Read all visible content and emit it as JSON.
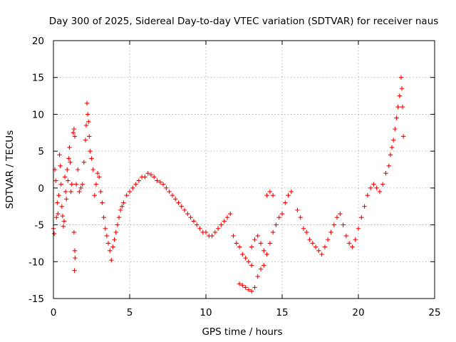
{
  "chart_data": {
    "type": "scatter",
    "title": "Day 300 of 2025, Sidereal Day-to-day VTEC variation (SDTVAR) for receiver naus",
    "xlabel": "GPS time / hours",
    "ylabel": "SDTVAR / TECUs",
    "xlim": [
      0,
      25
    ],
    "ylim": [
      -15,
      20
    ],
    "xticks": [
      0,
      5,
      10,
      15,
      20,
      25
    ],
    "yticks": [
      -15,
      -10,
      -5,
      0,
      5,
      10,
      15,
      20
    ],
    "grid": true,
    "marker": "+",
    "color": "#ff0000",
    "series": [
      {
        "name": "SDTVAR",
        "points": [
          [
            0.0,
            -5.5
          ],
          [
            0.05,
            -6.2
          ],
          [
            0.1,
            2.5
          ],
          [
            0.15,
            1.0
          ],
          [
            0.2,
            -4.0
          ],
          [
            0.25,
            -2.0
          ],
          [
            0.3,
            -3.5
          ],
          [
            0.35,
            -1.0
          ],
          [
            0.4,
            4.5
          ],
          [
            0.45,
            3.0
          ],
          [
            0.5,
            0.5
          ],
          [
            0.55,
            -2.5
          ],
          [
            0.6,
            -3.8
          ],
          [
            0.65,
            -5.2
          ],
          [
            0.7,
            -4.5
          ],
          [
            0.75,
            1.5
          ],
          [
            0.8,
            -0.5
          ],
          [
            0.85,
            -1.5
          ],
          [
            0.9,
            2.5
          ],
          [
            0.95,
            1.0
          ],
          [
            1.0,
            4.0
          ],
          [
            1.05,
            5.5
          ],
          [
            1.1,
            3.5
          ],
          [
            1.15,
            -0.5
          ],
          [
            1.2,
            0.5
          ],
          [
            1.3,
            7.5
          ],
          [
            1.35,
            8.0
          ],
          [
            1.4,
            7.0
          ],
          [
            1.35,
            -6.0
          ],
          [
            1.4,
            -8.5
          ],
          [
            1.38,
            -11.2
          ],
          [
            1.42,
            -9.5
          ],
          [
            1.5,
            0.5
          ],
          [
            1.6,
            2.5
          ],
          [
            1.7,
            -0.5
          ],
          [
            1.8,
            0.0
          ],
          [
            1.9,
            0.5
          ],
          [
            2.0,
            3.5
          ],
          [
            2.1,
            6.5
          ],
          [
            2.15,
            8.5
          ],
          [
            2.2,
            11.5
          ],
          [
            2.25,
            10.0
          ],
          [
            2.3,
            9.0
          ],
          [
            2.35,
            7.0
          ],
          [
            2.4,
            5.0
          ],
          [
            2.5,
            4.0
          ],
          [
            2.6,
            2.5
          ],
          [
            2.7,
            -1.0
          ],
          [
            2.8,
            0.5
          ],
          [
            2.9,
            2.0
          ],
          [
            3.0,
            1.5
          ],
          [
            3.1,
            -0.5
          ],
          [
            3.2,
            -2.0
          ],
          [
            3.3,
            -4.0
          ],
          [
            3.4,
            -5.5
          ],
          [
            3.5,
            -6.5
          ],
          [
            3.6,
            -7.5
          ],
          [
            3.7,
            -8.5
          ],
          [
            3.8,
            -9.8
          ],
          [
            3.9,
            -8.0
          ],
          [
            4.0,
            -7.0
          ],
          [
            4.1,
            -6.0
          ],
          [
            4.2,
            -5.0
          ],
          [
            4.3,
            -4.0
          ],
          [
            4.4,
            -3.0
          ],
          [
            4.5,
            -2.5
          ],
          [
            4.6,
            -2.0
          ],
          [
            4.8,
            -1.0
          ],
          [
            5.0,
            -0.5
          ],
          [
            5.2,
            0.0
          ],
          [
            5.4,
            0.5
          ],
          [
            5.6,
            1.0
          ],
          [
            5.8,
            1.5
          ],
          [
            6.0,
            1.5
          ],
          [
            6.2,
            2.0
          ],
          [
            6.4,
            1.8
          ],
          [
            6.6,
            1.5
          ],
          [
            6.8,
            1.0
          ],
          [
            7.0,
            0.8
          ],
          [
            7.2,
            0.5
          ],
          [
            7.4,
            0.0
          ],
          [
            7.6,
            -0.5
          ],
          [
            7.8,
            -1.0
          ],
          [
            8.0,
            -1.5
          ],
          [
            8.2,
            -2.0
          ],
          [
            8.4,
            -2.5
          ],
          [
            8.6,
            -3.0
          ],
          [
            8.8,
            -3.5
          ],
          [
            9.0,
            -4.0
          ],
          [
            9.2,
            -4.5
          ],
          [
            9.4,
            -5.0
          ],
          [
            9.6,
            -5.5
          ],
          [
            9.8,
            -6.0
          ],
          [
            10.0,
            -6.0
          ],
          [
            10.2,
            -6.5
          ],
          [
            10.4,
            -6.5
          ],
          [
            10.6,
            -6.0
          ],
          [
            10.8,
            -5.5
          ],
          [
            11.0,
            -5.0
          ],
          [
            11.2,
            -4.5
          ],
          [
            11.4,
            -4.0
          ],
          [
            11.6,
            -3.5
          ],
          [
            11.8,
            -6.5
          ],
          [
            12.0,
            -7.5
          ],
          [
            12.2,
            -8.0
          ],
          [
            12.4,
            -9.0
          ],
          [
            12.6,
            -9.5
          ],
          [
            12.8,
            -10.0
          ],
          [
            13.0,
            -10.5
          ],
          [
            12.2,
            -13.0
          ],
          [
            12.4,
            -13.2
          ],
          [
            12.6,
            -13.5
          ],
          [
            12.8,
            -13.8
          ],
          [
            13.0,
            -14.0
          ],
          [
            13.2,
            -13.5
          ],
          [
            13.4,
            -12.0
          ],
          [
            13.6,
            -11.0
          ],
          [
            13.8,
            -10.5
          ],
          [
            13.0,
            -8.0
          ],
          [
            13.2,
            -7.0
          ],
          [
            13.4,
            -6.5
          ],
          [
            13.6,
            -7.5
          ],
          [
            13.8,
            -8.5
          ],
          [
            14.0,
            -9.0
          ],
          [
            14.2,
            -7.5
          ],
          [
            14.4,
            -6.0
          ],
          [
            14.6,
            -5.0
          ],
          [
            14.8,
            -4.0
          ],
          [
            15.0,
            -3.5
          ],
          [
            15.2,
            -2.0
          ],
          [
            15.4,
            -1.0
          ],
          [
            14.0,
            -1.0
          ],
          [
            14.2,
            -0.5
          ],
          [
            14.4,
            -1.0
          ],
          [
            15.6,
            -0.5
          ],
          [
            16.0,
            -3.0
          ],
          [
            16.2,
            -4.0
          ],
          [
            16.4,
            -5.5
          ],
          [
            16.6,
            -6.0
          ],
          [
            16.8,
            -7.0
          ],
          [
            17.0,
            -7.5
          ],
          [
            17.2,
            -8.0
          ],
          [
            17.4,
            -8.5
          ],
          [
            17.6,
            -9.0
          ],
          [
            17.8,
            -8.0
          ],
          [
            18.0,
            -7.0
          ],
          [
            18.2,
            -6.0
          ],
          [
            18.4,
            -5.0
          ],
          [
            18.6,
            -4.0
          ],
          [
            18.8,
            -3.5
          ],
          [
            19.0,
            -5.0
          ],
          [
            19.2,
            -6.5
          ],
          [
            19.4,
            -7.5
          ],
          [
            19.6,
            -8.0
          ],
          [
            19.8,
            -7.0
          ],
          [
            20.0,
            -5.5
          ],
          [
            20.2,
            -4.0
          ],
          [
            20.4,
            -2.5
          ],
          [
            20.6,
            -1.0
          ],
          [
            20.8,
            0.0
          ],
          [
            21.0,
            0.5
          ],
          [
            21.2,
            0.0
          ],
          [
            21.4,
            -0.5
          ],
          [
            21.6,
            0.5
          ],
          [
            21.8,
            2.0
          ],
          [
            22.0,
            3.0
          ],
          [
            22.1,
            4.5
          ],
          [
            22.2,
            5.5
          ],
          [
            22.3,
            6.5
          ],
          [
            22.4,
            8.0
          ],
          [
            22.5,
            9.5
          ],
          [
            22.6,
            11.0
          ],
          [
            22.7,
            12.5
          ],
          [
            22.8,
            15.0
          ],
          [
            22.85,
            13.5
          ],
          [
            22.9,
            11.0
          ],
          [
            22.95,
            7.0
          ]
        ]
      }
    ]
  }
}
